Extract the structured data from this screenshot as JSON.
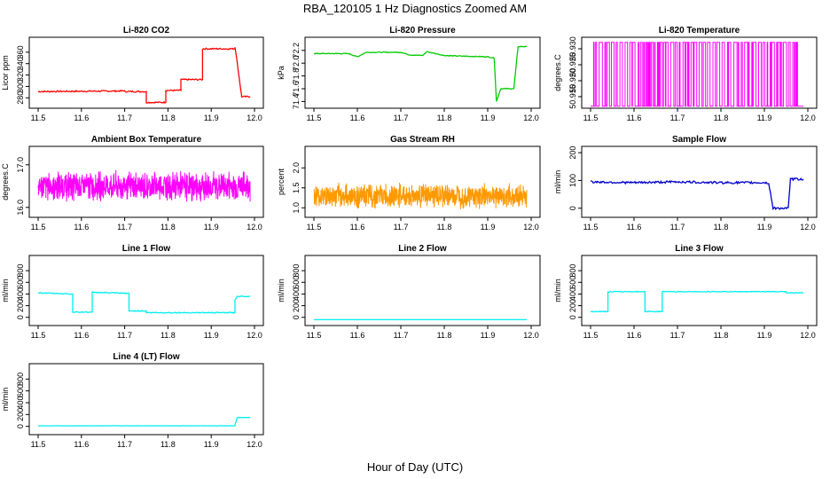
{
  "figure": {
    "title": "RBA_120105  1 Hz Diagnostics Zoomed AM",
    "xlabel": "Hour of Day (UTC)"
  },
  "chart_data": [
    {
      "type": "line",
      "title": "Li-820 CO2",
      "xlabel": "",
      "ylabel": "Licor ppm",
      "color": "#ff0000",
      "xlim": [
        11.5,
        12.0
      ],
      "ylim": [
        268,
        380
      ],
      "xticks": [
        "11.5",
        "11.6",
        "11.7",
        "11.8",
        "11.9",
        "12.0"
      ],
      "yticks": [
        "280",
        "300",
        "320",
        "340",
        "360"
      ],
      "series": [
        {
          "x": [
            11.5,
            11.7,
            11.7,
            11.75,
            11.75,
            11.795,
            11.795,
            11.83,
            11.83,
            11.88,
            11.88,
            11.955,
            11.955,
            11.97,
            11.97,
            11.99
          ],
          "y": [
            291,
            292,
            291,
            291,
            272,
            272,
            293,
            293,
            312,
            312,
            366,
            366,
            370,
            285,
            282,
            282
          ],
          "noise": 1.2
        }
      ]
    },
    {
      "type": "line",
      "title": "Li-820 Pressure",
      "xlabel": "",
      "ylabel": "kPa",
      "color": "#00cc00",
      "xlim": [
        11.5,
        12.0
      ],
      "ylim": [
        71.35,
        72.35
      ],
      "xticks": [
        "11.5",
        "11.6",
        "11.7",
        "11.8",
        "11.9",
        "12.0"
      ],
      "yticks": [
        "71.4",
        "71.6",
        "71.8",
        "72.0",
        "72.2"
      ],
      "series": [
        {
          "x": [
            11.5,
            11.58,
            11.6,
            11.62,
            11.7,
            11.72,
            11.75,
            11.76,
            11.8,
            11.84,
            11.9,
            11.915,
            11.92,
            11.93,
            11.95,
            11.96,
            11.97,
            11.99
          ],
          "y": [
            72.15,
            72.15,
            72.1,
            72.17,
            72.17,
            72.13,
            72.12,
            72.18,
            72.12,
            72.11,
            72.1,
            72.08,
            71.4,
            71.6,
            71.6,
            71.6,
            72.26,
            72.26
          ],
          "noise": 0.006
        }
      ]
    },
    {
      "type": "line",
      "title": "Li-820 Temperature",
      "xlabel": "",
      "ylabel": "degrees.C",
      "color": "#ff00ff",
      "xlim": [
        11.5,
        12.0
      ],
      "ylim": [
        50.9125,
        50.9325
      ],
      "xticks": [
        "11.5",
        "11.6",
        "11.7",
        "11.8",
        "11.9",
        "12.0"
      ],
      "yticks": [
        "50.915",
        "50.920",
        "50.925",
        "50.930"
      ],
      "series": [
        {
          "levels": [
            50.912,
            50.932
          ],
          "toggle_count": 120,
          "x0": 11.5,
          "x1": 11.99
        }
      ]
    },
    {
      "type": "line",
      "title": "Ambient Box Temperature",
      "xlabel": "",
      "ylabel": "degrees.C",
      "color": "#ff00ff",
      "xlim": [
        11.5,
        12.0
      ],
      "ylim": [
        15.85,
        17.35
      ],
      "xticks": [
        "11.5",
        "11.6",
        "11.7",
        "11.8",
        "11.9",
        "12.0"
      ],
      "yticks": [
        "16.0",
        "17.0"
      ],
      "series": [
        {
          "mean": 16.5,
          "spread": 0.4,
          "x0": 11.5,
          "x1": 11.99
        }
      ]
    },
    {
      "type": "line",
      "title": "Gas Stream RH",
      "xlabel": "",
      "ylabel": "percent",
      "color": "#ff9900",
      "xlim": [
        11.5,
        12.0
      ],
      "ylim": [
        0.85,
        2.45
      ],
      "xticks": [
        "11.5",
        "11.6",
        "11.7",
        "11.8",
        "11.9",
        "12.0"
      ],
      "yticks": [
        "1.0",
        "1.5",
        "2.0"
      ],
      "series": [
        {
          "mean": 1.3,
          "spread": 0.35,
          "x0": 11.5,
          "x1": 11.99
        }
      ]
    },
    {
      "type": "line",
      "title": "Sample Flow",
      "xlabel": "",
      "ylabel": "ml/min",
      "color": "#0000cc",
      "xlim": [
        11.5,
        12.0
      ],
      "ylim": [
        -20,
        210
      ],
      "xticks": [
        "11.5",
        "11.6",
        "11.7",
        "11.8",
        "11.9",
        "12.0"
      ],
      "yticks": [
        "0",
        "100",
        "200"
      ],
      "series": [
        {
          "x": [
            11.5,
            11.6,
            11.7,
            11.8,
            11.9,
            11.91,
            11.92,
            11.955,
            11.96,
            11.99
          ],
          "y": [
            95,
            92,
            95,
            92,
            92,
            90,
            0,
            0,
            105,
            105
          ],
          "noise": 4
        }
      ]
    },
    {
      "type": "line",
      "title": "Line 1 Flow",
      "xlabel": "",
      "ylabel": "ml/min",
      "color": "#00eeee",
      "xlim": [
        11.5,
        12.0
      ],
      "ylim": [
        -80,
        1000
      ],
      "xticks": [
        "11.5",
        "11.6",
        "11.7",
        "11.8",
        "11.9",
        "12.0"
      ],
      "yticks": [
        "0",
        "200",
        "400",
        "600",
        "800"
      ],
      "series": [
        {
          "x": [
            11.5,
            11.58,
            11.58,
            11.625,
            11.625,
            11.71,
            11.71,
            11.75,
            11.75,
            11.955,
            11.955,
            11.96,
            11.96,
            11.99
          ],
          "y": [
            420,
            400,
            90,
            90,
            430,
            410,
            110,
            110,
            80,
            80,
            300,
            360,
            360,
            360
          ],
          "noise": 8
        }
      ]
    },
    {
      "type": "line",
      "title": "Line 2 Flow",
      "xlabel": "",
      "ylabel": "ml/min",
      "color": "#00eeee",
      "xlim": [
        11.5,
        12.0
      ],
      "ylim": [
        -80,
        1000
      ],
      "xticks": [
        "11.5",
        "11.6",
        "11.7",
        "11.8",
        "11.9",
        "12.0"
      ],
      "yticks": [
        "0",
        "200",
        "400",
        "600",
        "800"
      ],
      "series": [
        {
          "x": [
            11.5,
            11.99
          ],
          "y": [
            -40,
            -40
          ],
          "noise": 0
        }
      ]
    },
    {
      "type": "line",
      "title": "Line 3 Flow",
      "xlabel": "",
      "ylabel": "ml/min",
      "color": "#00eeee",
      "xlim": [
        11.5,
        12.0
      ],
      "ylim": [
        -80,
        1000
      ],
      "xticks": [
        "11.5",
        "11.6",
        "11.7",
        "11.8",
        "11.9",
        "12.0"
      ],
      "yticks": [
        "0",
        "200",
        "400",
        "600",
        "800"
      ],
      "series": [
        {
          "x": [
            11.5,
            11.54,
            11.54,
            11.625,
            11.625,
            11.665,
            11.665,
            11.95,
            11.95,
            11.99
          ],
          "y": [
            100,
            100,
            440,
            440,
            100,
            100,
            440,
            440,
            420,
            420
          ],
          "noise": 6
        }
      ]
    },
    {
      "type": "line",
      "title": "Line 4 (LT) Flow",
      "xlabel": "",
      "ylabel": "ml/min",
      "color": "#00eeee",
      "xlim": [
        11.5,
        12.0
      ],
      "ylim": [
        -80,
        1000
      ],
      "xticks": [
        "11.5",
        "11.6",
        "11.7",
        "11.8",
        "11.9",
        "12.0"
      ],
      "yticks": [
        "0",
        "200",
        "400",
        "600",
        "800"
      ],
      "series": [
        {
          "x": [
            11.5,
            11.955,
            11.955,
            11.96,
            11.96,
            11.99
          ],
          "y": [
            10,
            10,
            30,
            150,
            150,
            150
          ],
          "noise": 2
        }
      ]
    }
  ]
}
